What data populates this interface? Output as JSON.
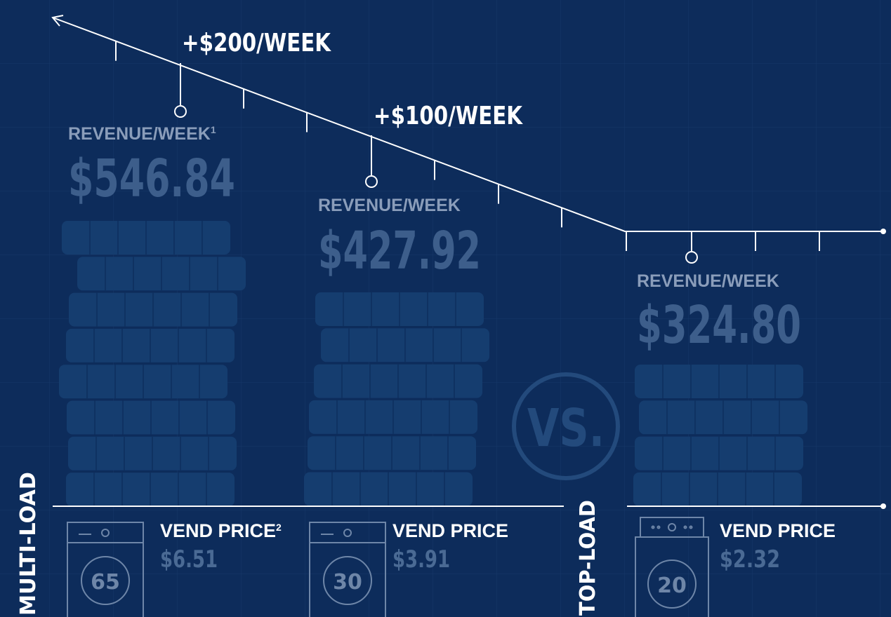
{
  "annotations": [
    "+$200/WEEK",
    "+$100/WEEK"
  ],
  "vs": "VS.",
  "groups": [
    "MULTI-LOAD",
    "TOP-LOAD"
  ],
  "columns": [
    {
      "label": "REVENUE/WEEK",
      "footnote": "1",
      "revenue": "$546.84",
      "capacity": "65",
      "vend_label": "VEND PRICE",
      "vend_footnote": "2",
      "vend_price": "$6.51"
    },
    {
      "label": "REVENUE/WEEK",
      "revenue": "$427.92",
      "capacity": "30",
      "vend_label": "VEND PRICE",
      "vend_price": "$3.91"
    },
    {
      "label": "REVENUE/WEEK",
      "revenue": "$324.80",
      "capacity": "20",
      "vend_label": "VEND PRICE",
      "vend_price": "$2.32"
    }
  ]
}
